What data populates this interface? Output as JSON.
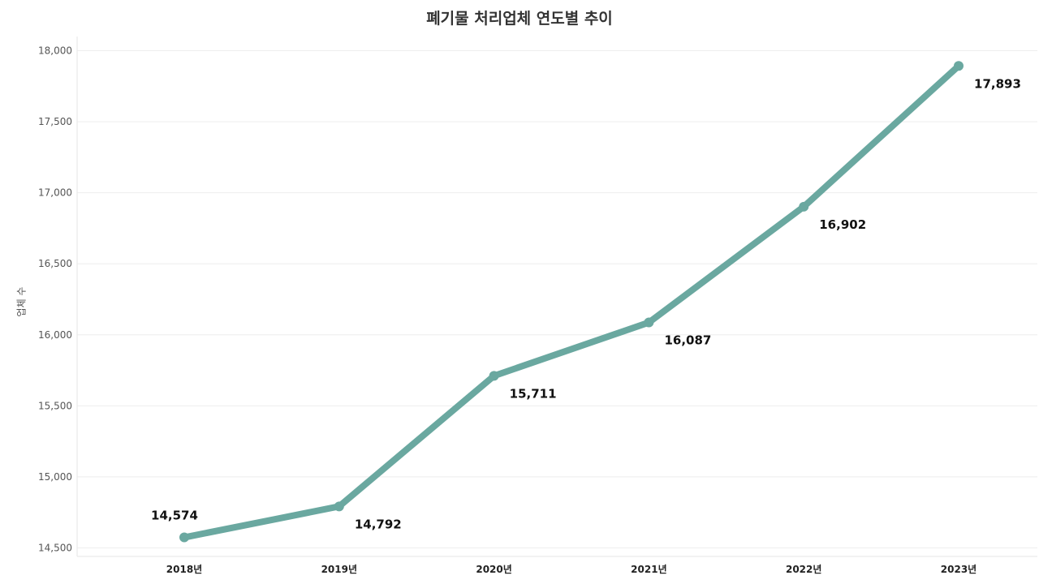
{
  "chart_data": {
    "type": "line",
    "title": "폐기물 처리업체 연도별 추이",
    "xlabel": "",
    "ylabel": "업체 수",
    "categories": [
      "2018년",
      "2019년",
      "2020년",
      "2021년",
      "2022년",
      "2023년"
    ],
    "series": [
      {
        "values": [
          14574,
          14792,
          15711,
          16087,
          16902,
          17893
        ]
      }
    ],
    "data_labels": [
      "14,574",
      "14,792",
      "15,711",
      "16,087",
      "16,902",
      "17,893"
    ],
    "yticks": [
      14500,
      15000,
      15500,
      16000,
      16500,
      17000,
      17500,
      18000
    ],
    "ytick_labels": [
      "14,500",
      "15,000",
      "15,500",
      "16,000",
      "16,500",
      "17,000",
      "17,500",
      "18,000"
    ],
    "ylim": [
      14440,
      18100
    ],
    "grid": true,
    "line_color": "#6aa8a0"
  }
}
